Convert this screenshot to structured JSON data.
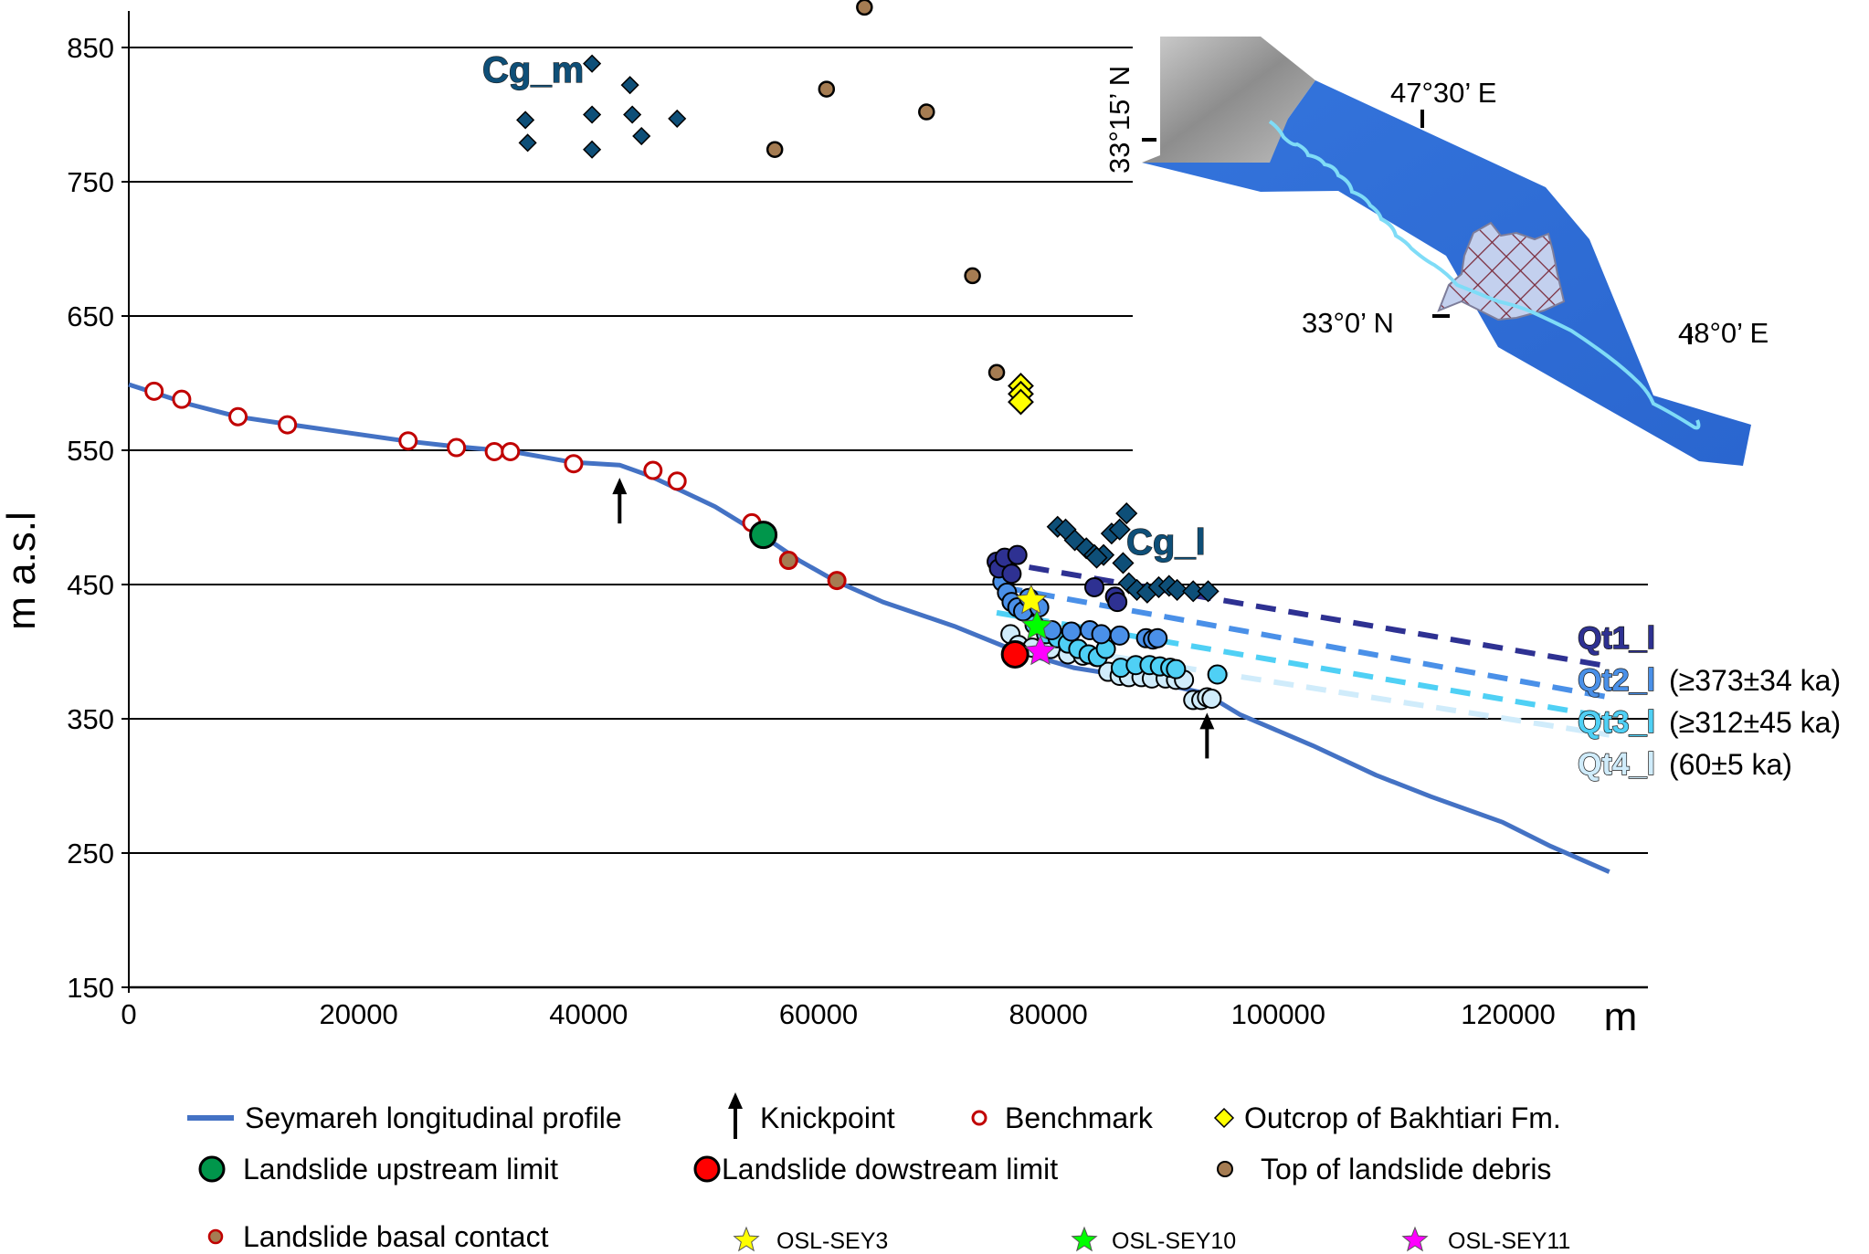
{
  "chart_data": {
    "type": "scatter",
    "title": "",
    "xlabel": "m",
    "ylabel": "m a.s.l",
    "xlim": [
      0,
      130000
    ],
    "ylim": [
      150,
      880
    ],
    "x_ticks": [
      0,
      20000,
      40000,
      60000,
      80000,
      100000,
      120000
    ],
    "x_tick_labels": [
      "0",
      "20000",
      "40000",
      "60000",
      "80000",
      "100000",
      "120000"
    ],
    "y_ticks": [
      150,
      250,
      350,
      450,
      550,
      650,
      750,
      850
    ],
    "y_tick_labels": [
      "150",
      "250",
      "350",
      "450",
      "550",
      "650",
      "750",
      "850"
    ],
    "grid": "horizontal",
    "colors": {
      "profile": "#4472c4",
      "benchmark": "#c00000",
      "upstream_limit": "#00964b",
      "downstream_limit": "#ff0000",
      "debris": "#a57c52",
      "bakhtiari": "#ffff00",
      "cg": "#0e4f78",
      "qt1": "#2e3192",
      "qt2": "#4a90e8",
      "qt3": "#4fd0f5",
      "qt4": "#d0ecfb",
      "osl_sey3": "#ffff00",
      "osl_sey10": "#00ff00",
      "osl_sey11": "#ff00ff"
    },
    "profile": {
      "name": "Seymareh longitudinal profile",
      "x": [
        0,
        5400,
        9500,
        14200,
        24000,
        28200,
        33400,
        38600,
        42700,
        45300,
        51000,
        55200,
        58300,
        61400,
        65600,
        71800,
        77000,
        82200,
        87300,
        93600,
        96700,
        103000,
        108500,
        113300,
        119500,
        123700,
        128800
      ],
      "y": [
        599,
        584,
        575,
        569,
        557,
        553,
        549,
        541,
        539,
        531,
        508,
        486,
        468,
        453,
        437,
        419,
        401,
        388,
        381,
        369,
        353,
        330,
        308,
        292,
        273,
        255,
        236
      ]
    },
    "benchmarks": {
      "name": "Benchmark",
      "points": [
        [
          2200,
          594
        ],
        [
          4600,
          588
        ],
        [
          9500,
          575
        ],
        [
          13800,
          569
        ],
        [
          24300,
          557
        ],
        [
          28500,
          552
        ],
        [
          31800,
          549
        ],
        [
          33200,
          549
        ],
        [
          38700,
          540
        ],
        [
          45600,
          535
        ],
        [
          47700,
          527
        ],
        [
          54200,
          496
        ]
      ]
    },
    "knickpoints": {
      "name": "Knickpoint",
      "points": [
        [
          42700,
          539
        ],
        [
          93800,
          364
        ]
      ]
    },
    "landslide_upstream_limit": {
      "name": "Landslide upstream limit",
      "points": [
        [
          55200,
          487
        ]
      ]
    },
    "landslide_downstream_limit": {
      "name": "Landslide dowstream limit",
      "points": [
        [
          77100,
          398
        ]
      ]
    },
    "landslide_basal_contact": {
      "name": "Landslide basal contact",
      "points": [
        [
          57400,
          468
        ],
        [
          61600,
          453
        ]
      ]
    },
    "top_landslide_debris": {
      "name": "Top of landslide debris",
      "points": [
        [
          64000,
          880
        ],
        [
          60700,
          819
        ],
        [
          69400,
          802
        ],
        [
          56200,
          774
        ],
        [
          73400,
          680
        ],
        [
          75500,
          608
        ]
      ]
    },
    "bakhtiari_outcrop": {
      "name": "Outcrop of Bakhtiari Fm.",
      "points": [
        [
          77600,
          598
        ],
        [
          77600,
          592
        ],
        [
          77600,
          586
        ]
      ]
    },
    "cg_m": {
      "label": "Cg_m",
      "points": [
        [
          40300,
          838
        ],
        [
          43600,
          822
        ],
        [
          34500,
          796
        ],
        [
          40300,
          800
        ],
        [
          43800,
          800
        ],
        [
          47700,
          797
        ],
        [
          34700,
          779
        ],
        [
          40300,
          774
        ],
        [
          44600,
          784
        ]
      ]
    },
    "cg_l": {
      "label": "Cg_l",
      "points": [
        [
          80800,
          493
        ],
        [
          81500,
          491
        ],
        [
          82300,
          483
        ],
        [
          83300,
          477
        ],
        [
          84000,
          472
        ],
        [
          84800,
          472
        ],
        [
          85500,
          488
        ],
        [
          86200,
          491
        ],
        [
          86800,
          503
        ],
        [
          86500,
          466
        ],
        [
          84200,
          470
        ],
        [
          87000,
          451
        ],
        [
          87700,
          446
        ],
        [
          88600,
          444
        ],
        [
          89600,
          448
        ],
        [
          90500,
          449
        ],
        [
          91200,
          446
        ],
        [
          92600,
          445
        ],
        [
          93900,
          445
        ]
      ]
    },
    "terraces": [
      {
        "label": "Qt1_l",
        "age": "",
        "trend": [
          [
            75500,
            467
          ],
          [
            128800,
            389
          ]
        ],
        "points": [
          [
            75500,
            467
          ],
          [
            75700,
            462
          ],
          [
            76200,
            470
          ],
          [
            77300,
            472
          ],
          [
            76800,
            458
          ],
          [
            84000,
            448
          ],
          [
            85800,
            441
          ],
          [
            86000,
            437
          ]
        ]
      },
      {
        "label": "Qt2_l",
        "age": "(≥373±34 ka)",
        "trend": [
          [
            76000,
            448
          ],
          [
            128800,
            366
          ]
        ],
        "points": [
          [
            76000,
            452
          ],
          [
            76400,
            444
          ],
          [
            76800,
            437
          ],
          [
            77300,
            433
          ],
          [
            77800,
            430
          ],
          [
            78300,
            440
          ],
          [
            79200,
            433
          ],
          [
            80300,
            416
          ],
          [
            82000,
            415
          ],
          [
            83600,
            416
          ],
          [
            84600,
            413
          ],
          [
            86200,
            412
          ],
          [
            88500,
            410
          ],
          [
            89100,
            409
          ],
          [
            89500,
            410
          ]
        ]
      },
      {
        "label": "Qt3_l",
        "age": "(≥312±45 ka)",
        "trend": [
          [
            75500,
            429
          ],
          [
            128800,
            351
          ]
        ],
        "points": [
          [
            78800,
            420
          ],
          [
            79800,
            413
          ],
          [
            80800,
            410
          ],
          [
            81700,
            406
          ],
          [
            82600,
            402
          ],
          [
            83500,
            398
          ],
          [
            84300,
            396
          ],
          [
            85000,
            402
          ],
          [
            86300,
            388
          ],
          [
            87600,
            390
          ],
          [
            88800,
            390
          ],
          [
            89700,
            389
          ],
          [
            90600,
            388
          ],
          [
            91100,
            387
          ],
          [
            94700,
            383
          ]
        ]
      },
      {
        "label": "Qt4_l",
        "age": "(60±5 ka)",
        "trend": [
          [
            77000,
            408
          ],
          [
            128800,
            338
          ]
        ],
        "points": [
          [
            76700,
            413
          ],
          [
            77400,
            405
          ],
          [
            78600,
            403
          ],
          [
            80200,
            402
          ],
          [
            81700,
            398
          ],
          [
            83000,
            397
          ],
          [
            84200,
            396
          ],
          [
            85200,
            385
          ],
          [
            86200,
            382
          ],
          [
            87000,
            381
          ],
          [
            88100,
            381
          ],
          [
            89000,
            380
          ],
          [
            90200,
            380
          ],
          [
            91100,
            379
          ],
          [
            91800,
            379
          ],
          [
            92600,
            364
          ],
          [
            93300,
            364
          ],
          [
            93800,
            366
          ],
          [
            94200,
            365
          ]
        ]
      }
    ],
    "osl_samples": [
      {
        "name": "OSL-SEY3",
        "x": 78500,
        "y": 438
      },
      {
        "name": "OSL-SEY10",
        "x": 79000,
        "y": 419
      },
      {
        "name": "OSL-SEY11",
        "x": 79300,
        "y": 400
      }
    ],
    "legend": {
      "placement": "bottom",
      "entries": [
        "Seymareh longitudinal profile",
        "Knickpoint",
        "Benchmark",
        "Outcrop of Bakhtiari Fm.",
        "Landslide upstream limit",
        "Landslide dowstream limit",
        "Top of landslide debris",
        "Landslide basal contact",
        "OSL-SEY3",
        "OSL-SEY10",
        "OSL-SEY11"
      ]
    }
  },
  "inset_map": {
    "labels": {
      "lat_top": "33°15’ N",
      "lat_mid": "33°0’ N",
      "lon_left": "47°30’ E",
      "lon_right": "48°0’ E"
    },
    "colors": {
      "valley": "#2f6fd6",
      "hillshade": "#a8a8a8",
      "river": "#7fdcf7",
      "landslide": "#c3d0ee",
      "hatch": "#7a2a3a"
    }
  }
}
